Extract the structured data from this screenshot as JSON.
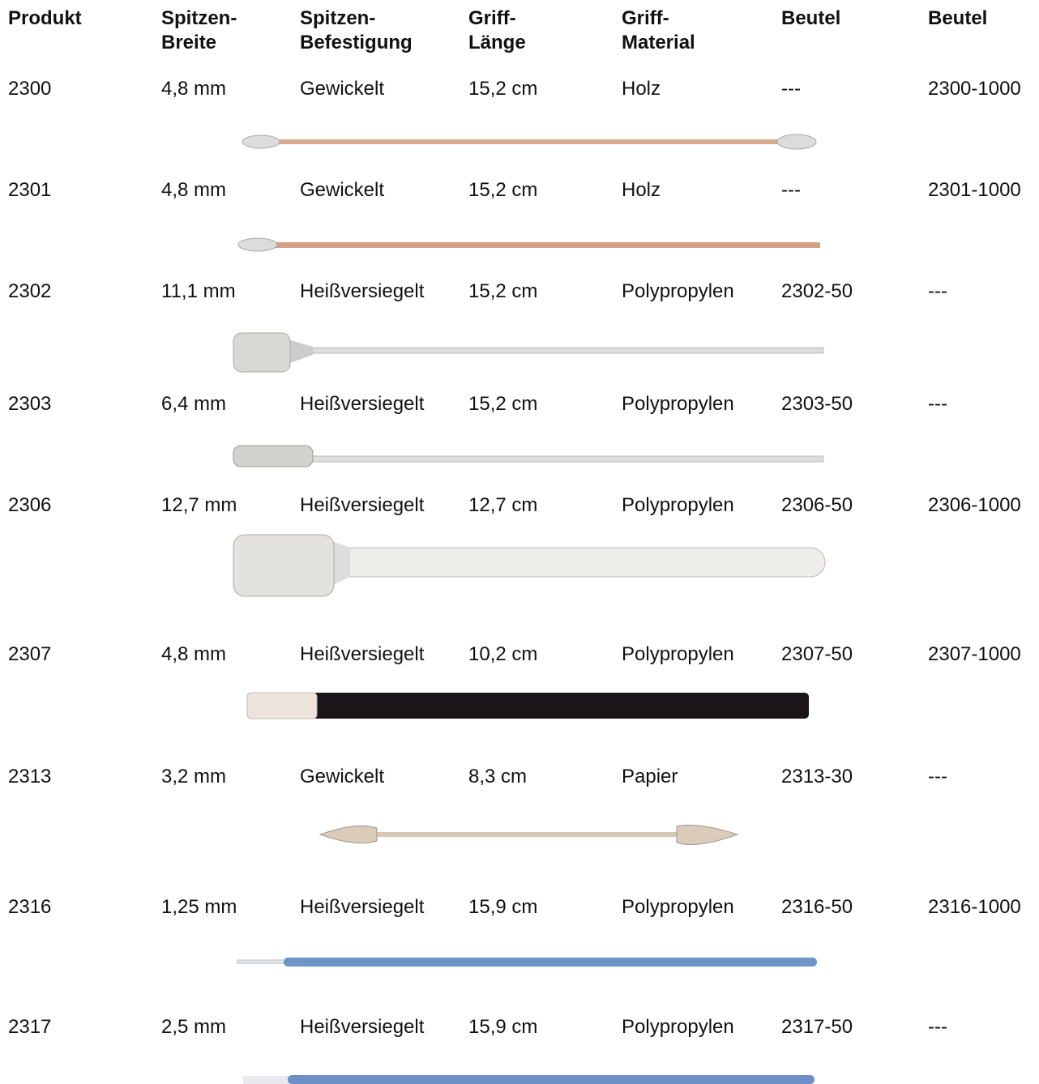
{
  "table": {
    "header": [
      [
        "Produkt"
      ],
      [
        "Spitzen-",
        "Breite"
      ],
      [
        "Spitzen-",
        "Befestigung"
      ],
      [
        "Griff-",
        "Länge"
      ],
      [
        "Griff-",
        "Material"
      ],
      [
        "Beutel"
      ],
      [
        "Beutel"
      ]
    ],
    "rows": [
      [
        "2300",
        "4,8 mm",
        "Gewickelt",
        "15,2 cm",
        "Holz",
        "---",
        "2300-1000"
      ],
      [
        "2301",
        "4,8 mm",
        "Gewickelt",
        "15,2 cm",
        "Holz",
        "---",
        "2301-1000"
      ],
      [
        "2302",
        "11,1 mm",
        "Heißversiegelt",
        "15,2 cm",
        "Polypropylen",
        "2302-50",
        "---"
      ],
      [
        "2303",
        "6,4 mm",
        "Heißversiegelt",
        "15,2 cm",
        "Polypropylen",
        "2303-50",
        "---"
      ],
      [
        "2306",
        "12,7 mm",
        "Heißversiegelt",
        "12,7 cm",
        "Polypropylen",
        "2306-50",
        "2306-1000"
      ],
      [
        "2307",
        "4,8 mm",
        "Heißversiegelt",
        "10,2 cm",
        "Polypropylen",
        "2307-50",
        "2307-1000"
      ],
      [
        "2313",
        "3,2 mm",
        "Gewickelt",
        "8,3 cm",
        "Papier",
        "2313-30",
        "---"
      ],
      [
        "2316",
        "1,25 mm",
        "Heißversiegelt",
        "15,9 cm",
        "Polypropylen",
        "2316-50",
        "2316-1000"
      ],
      [
        "2317",
        "2,5 mm",
        "Heißversiegelt",
        "15,9 cm",
        "Polypropylen",
        "2317-50",
        "---"
      ]
    ]
  }
}
